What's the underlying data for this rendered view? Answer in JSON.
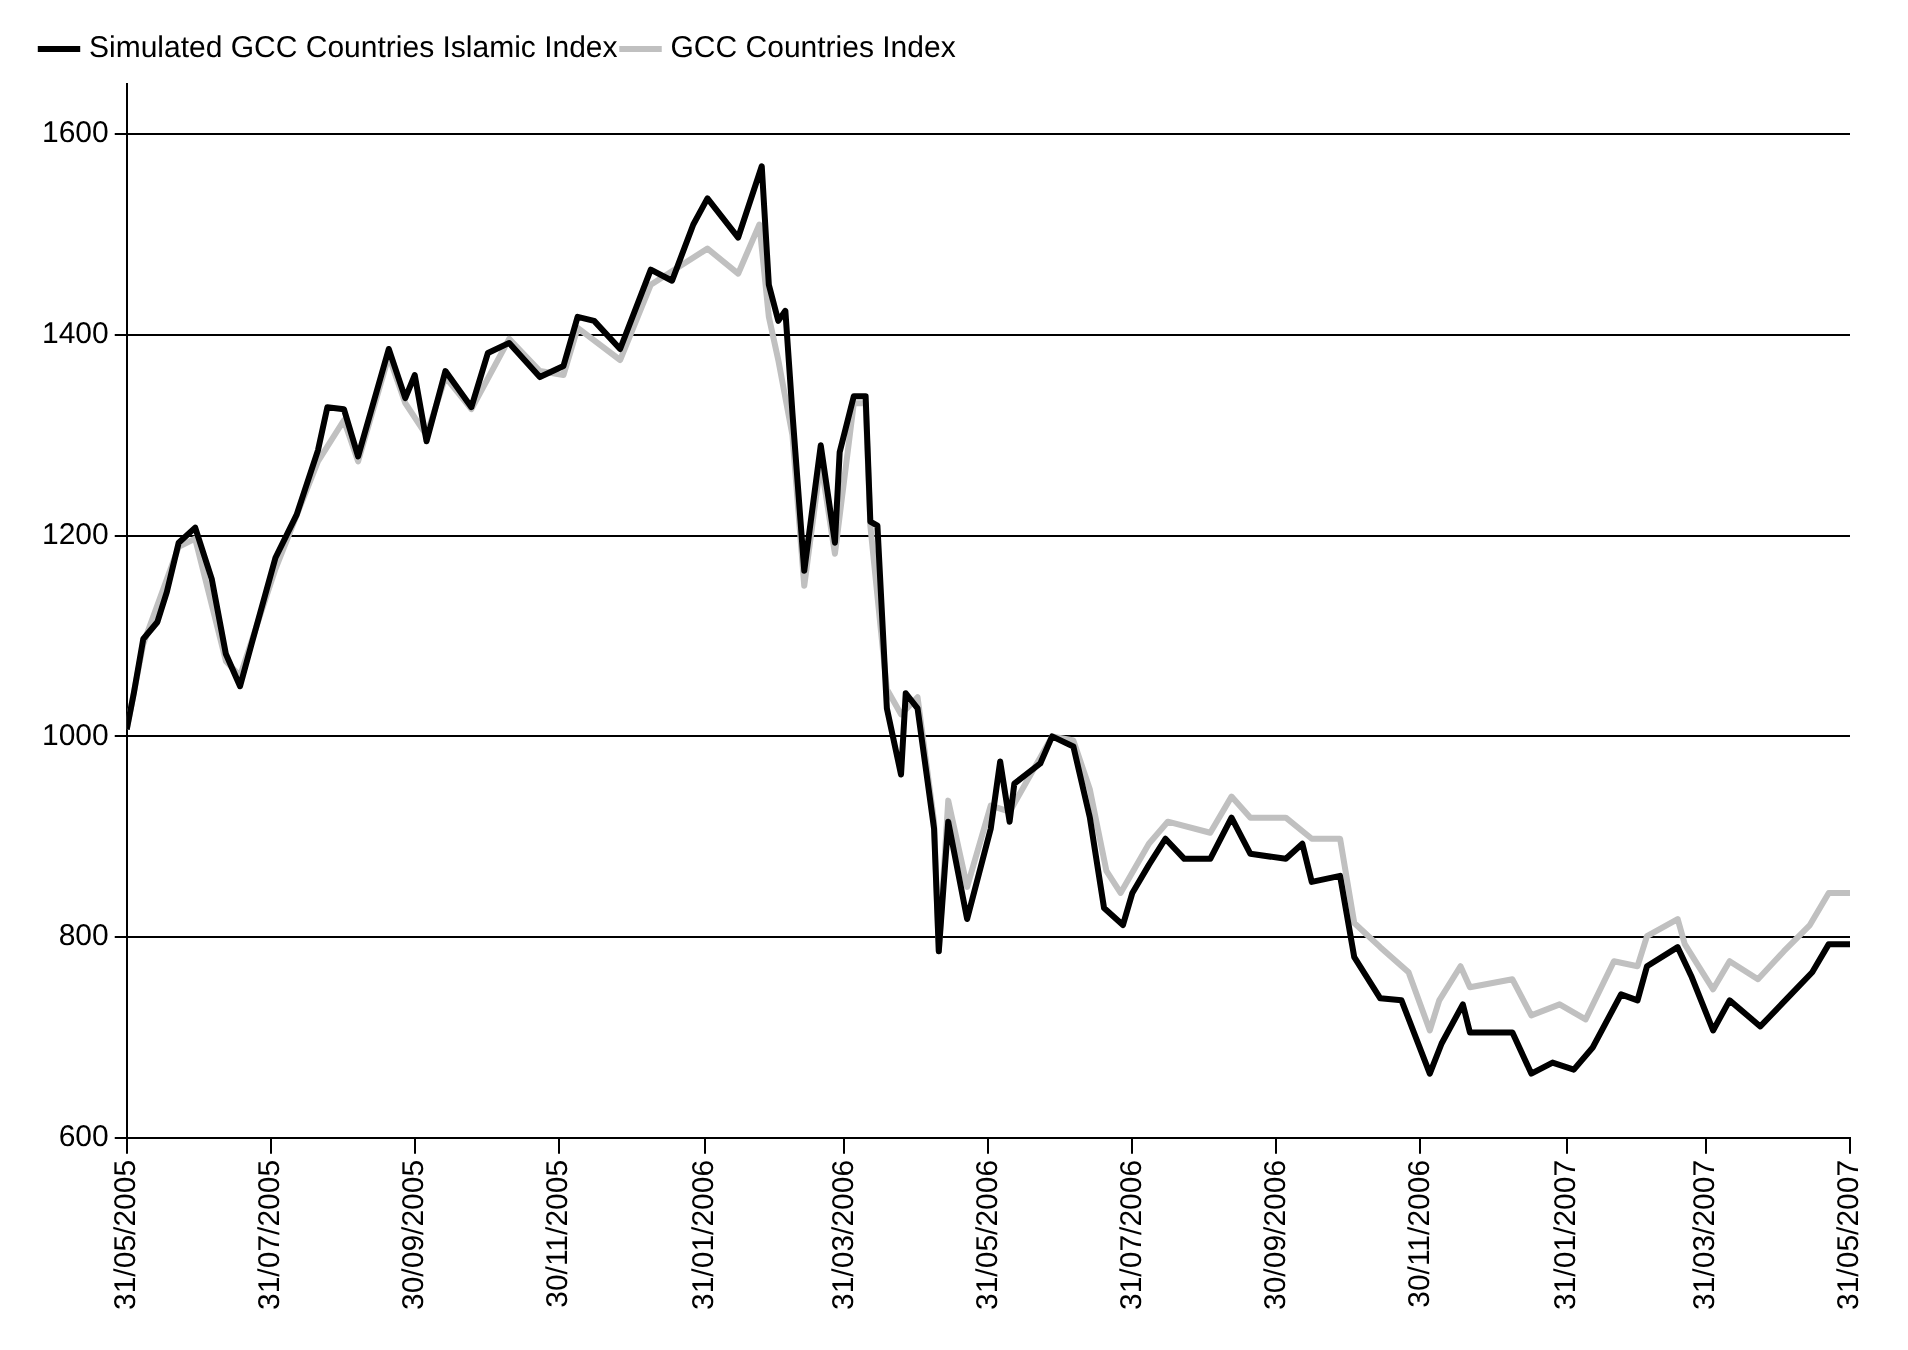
{
  "chart_data": {
    "type": "line",
    "xlim": [
      "2005-05-31",
      "2007-05-31"
    ],
    "ylim": [
      600,
      1650
    ],
    "yticks": [
      600,
      800,
      1000,
      1200,
      1400,
      1600
    ],
    "xticks": [
      {
        "value": "2005-05-31",
        "label": "31/05/2005"
      },
      {
        "value": "2005-07-31",
        "label": "31/07/2005"
      },
      {
        "value": "2005-09-30",
        "label": "30/09/2005"
      },
      {
        "value": "2005-11-30",
        "label": "30/11/2005"
      },
      {
        "value": "2006-01-31",
        "label": "31/01/2006"
      },
      {
        "value": "2006-03-31",
        "label": "31/03/2006"
      },
      {
        "value": "2006-05-31",
        "label": "31/05/2006"
      },
      {
        "value": "2006-07-31",
        "label": "31/07/2006"
      },
      {
        "value": "2006-09-30",
        "label": "30/09/2006"
      },
      {
        "value": "2006-11-30",
        "label": "30/11/2006"
      },
      {
        "value": "2007-01-31",
        "label": "31/01/2007"
      },
      {
        "value": "2007-03-31",
        "label": "31/03/2007"
      },
      {
        "value": "2007-05-31",
        "label": "31/05/2007"
      }
    ],
    "grid": "y",
    "legend": "top left",
    "marker": "none",
    "line_style": "solid",
    "series": [
      {
        "name": "GCC Countries Index",
        "color": "#c0c0c0",
        "x": [
          "2005-05-31",
          "2005-06-07",
          "2005-06-22",
          "2005-06-29",
          "2005-07-12",
          "2005-07-18",
          "2005-08-02",
          "2005-08-20",
          "2005-08-31",
          "2005-09-06",
          "2005-09-19",
          "2005-09-26",
          "2005-10-05",
          "2005-10-13",
          "2005-10-24",
          "2005-11-09",
          "2005-11-22",
          "2005-12-02",
          "2005-12-08",
          "2005-12-26",
          "2006-01-08",
          "2006-02-01",
          "2006-02-14",
          "2006-02-23",
          "2006-02-27",
          "2006-03-03",
          "2006-03-09",
          "2006-03-14",
          "2006-03-21",
          "2006-03-27",
          "2006-04-04",
          "2006-04-09",
          "2006-04-11",
          "2006-04-18",
          "2006-04-24",
          "2006-05-01",
          "2006-05-08",
          "2006-05-10",
          "2006-05-14",
          "2006-05-22",
          "2006-06-01",
          "2006-06-09",
          "2006-06-22",
          "2006-06-27",
          "2006-07-06",
          "2006-07-13",
          "2006-07-20",
          "2006-07-26",
          "2006-08-07",
          "2006-08-15",
          "2006-09-02",
          "2006-09-11",
          "2006-09-19",
          "2006-10-04",
          "2006-10-15",
          "2006-10-27",
          "2006-11-02",
          "2006-11-13",
          "2006-11-25",
          "2006-12-04",
          "2006-12-08",
          "2006-12-17",
          "2006-12-21",
          "2007-01-08",
          "2007-01-16",
          "2007-01-28",
          "2007-02-08",
          "2007-02-20",
          "2007-03-02",
          "2007-03-06",
          "2007-03-19",
          "2007-03-22",
          "2007-04-03",
          "2007-04-10",
          "2007-04-22",
          "2007-05-03",
          "2007-05-14",
          "2007-05-22",
          "2007-05-31"
        ],
        "values": [
          1007,
          1092,
          1189,
          1197,
          1075,
          1060,
          1167,
          1274,
          1315,
          1274,
          1379,
          1332,
          1300,
          1358,
          1326,
          1396,
          1364,
          1360,
          1407,
          1375,
          1450,
          1486,
          1461,
          1510,
          1418,
          1375,
          1300,
          1150,
          1274,
          1182,
          1332,
          1332,
          1210,
          1047,
          1022,
          1039,
          915,
          786,
          936,
          850,
          931,
          925,
          979,
          1000,
          996,
          947,
          866,
          844,
          893,
          915,
          904,
          940,
          919,
          919,
          898,
          898,
          814,
          790,
          765,
          707,
          737,
          771,
          750,
          758,
          722,
          733,
          718,
          776,
          771,
          801,
          818,
          793,
          748,
          776,
          758,
          786,
          812,
          844,
          844
        ]
      },
      {
        "name": "Simulated GCC Countries Islamic Index",
        "color": "#000000",
        "x": [
          "2005-05-31",
          "2005-06-03",
          "2005-06-07",
          "2005-06-13",
          "2005-06-17",
          "2005-06-22",
          "2005-06-29",
          "2005-07-06",
          "2005-07-12",
          "2005-07-18",
          "2005-07-23",
          "2005-08-02",
          "2005-08-11",
          "2005-08-20",
          "2005-08-24",
          "2005-08-31",
          "2005-09-06",
          "2005-09-19",
          "2005-09-26",
          "2005-09-30",
          "2005-10-05",
          "2005-10-13",
          "2005-10-24",
          "2005-10-31",
          "2005-11-09",
          "2005-11-22",
          "2005-12-02",
          "2005-12-08",
          "2005-12-15",
          "2005-12-26",
          "2006-01-08",
          "2006-01-17",
          "2006-01-26",
          "2006-02-01",
          "2006-02-14",
          "2006-02-24",
          "2006-02-27",
          "2006-03-03",
          "2006-03-06",
          "2006-03-09",
          "2006-03-14",
          "2006-03-21",
          "2006-03-27",
          "2006-03-29",
          "2006-04-04",
          "2006-04-09",
          "2006-04-11",
          "2006-04-14",
          "2006-04-18",
          "2006-04-24",
          "2006-04-26",
          "2006-05-01",
          "2006-05-08",
          "2006-05-10",
          "2006-05-14",
          "2006-05-22",
          "2006-06-01",
          "2006-06-05",
          "2006-06-09",
          "2006-06-11",
          "2006-06-22",
          "2006-06-27",
          "2006-07-06",
          "2006-07-13",
          "2006-07-19",
          "2006-07-27",
          "2006-07-31",
          "2006-08-07",
          "2006-08-14",
          "2006-08-22",
          "2006-09-02",
          "2006-09-11",
          "2006-09-19",
          "2006-10-04",
          "2006-10-11",
          "2006-10-15",
          "2006-10-27",
          "2006-11-02",
          "2006-11-13",
          "2006-11-22",
          "2006-12-04",
          "2006-12-09",
          "2006-12-18",
          "2006-12-21",
          "2007-01-08",
          "2007-01-16",
          "2007-01-25",
          "2007-02-03",
          "2007-02-11",
          "2007-02-23",
          "2007-03-02",
          "2007-03-06",
          "2007-03-19",
          "2007-03-25",
          "2007-04-03",
          "2007-04-10",
          "2007-04-23",
          "2007-05-06",
          "2007-05-15",
          "2007-05-22",
          "2007-05-31"
        ],
        "values": [
          1007,
          1043,
          1097,
          1114,
          1144,
          1193,
          1208,
          1157,
          1082,
          1050,
          1093,
          1178,
          1221,
          1285,
          1328,
          1326,
          1279,
          1386,
          1337,
          1360,
          1294,
          1364,
          1328,
          1382,
          1392,
          1358,
          1369,
          1418,
          1414,
          1386,
          1465,
          1454,
          1510,
          1536,
          1497,
          1568,
          1450,
          1414,
          1424,
          1322,
          1165,
          1290,
          1193,
          1283,
          1339,
          1339,
          1214,
          1210,
          1028,
          962,
          1043,
          1028,
          908,
          786,
          915,
          818,
          908,
          975,
          915,
          953,
          973,
          1000,
          990,
          919,
          829,
          812,
          844,
          872,
          898,
          878,
          878,
          919,
          883,
          878,
          893,
          855,
          861,
          780,
          739,
          737,
          664,
          694,
          733,
          705,
          705,
          664,
          675,
          668,
          690,
          743,
          737,
          771,
          790,
          760,
          707,
          737,
          711,
          743,
          765,
          793,
          793
        ]
      }
    ]
  }
}
